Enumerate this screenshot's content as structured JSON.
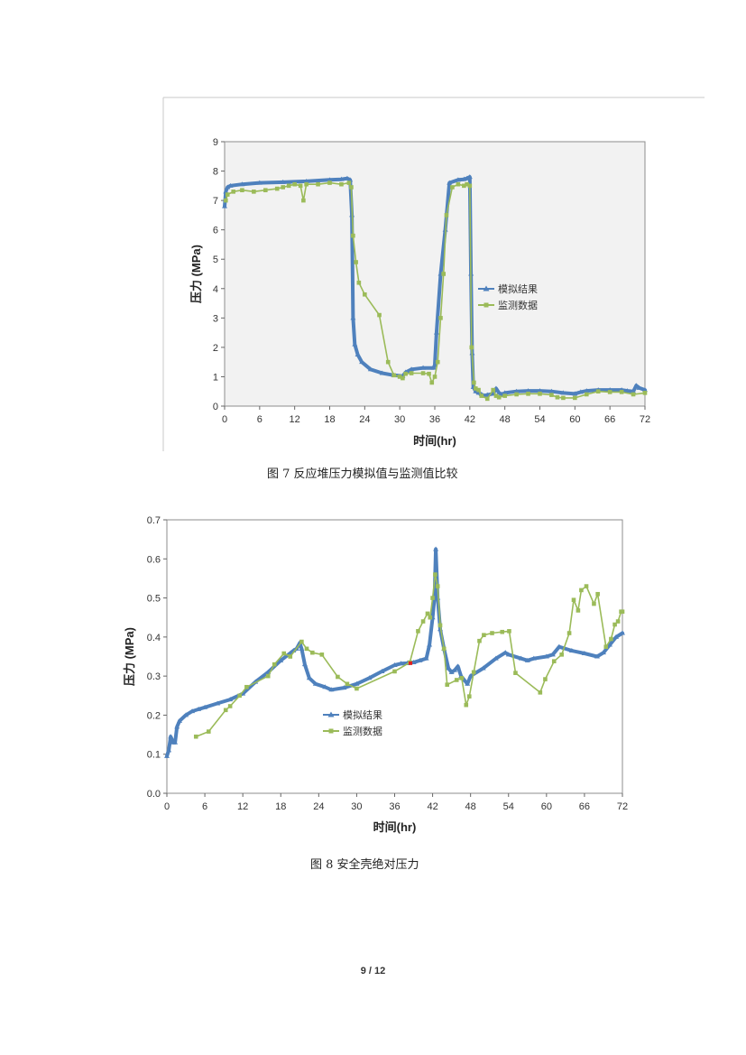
{
  "chart_data": [
    {
      "type": "line",
      "xlabel": "时间(hr)",
      "ylabel": "压力 (MPa)",
      "xlim": [
        0,
        72
      ],
      "ylim": [
        0,
        9
      ],
      "xticks": [
        0,
        6,
        12,
        18,
        24,
        30,
        36,
        42,
        48,
        54,
        60,
        66,
        72
      ],
      "yticks": [
        0,
        1,
        2,
        3,
        4,
        5,
        6,
        7,
        8,
        9
      ],
      "legend_position": "right",
      "series": [
        {
          "name": "模拟结果",
          "color": "#4f81bd",
          "marker": "triangle",
          "x": [
            0,
            0.2,
            0.5,
            1,
            3,
            6,
            10,
            14,
            18,
            20,
            21,
            21.5,
            21.8,
            22,
            22.3,
            22.8,
            23.5,
            25,
            27,
            29,
            30.5,
            31,
            32,
            34,
            35.8,
            36,
            36.3,
            37,
            37.8,
            38.5,
            40,
            41,
            41.5,
            42,
            42.2,
            42.4,
            42.6,
            43,
            43.5,
            44,
            44.5,
            45,
            46,
            46.5,
            47,
            47.5,
            48,
            50,
            52,
            54,
            56,
            58,
            60,
            61,
            62,
            64,
            66,
            68,
            69,
            70,
            70.5,
            71,
            72
          ],
          "y": [
            6.8,
            7.3,
            7.45,
            7.5,
            7.55,
            7.6,
            7.62,
            7.65,
            7.7,
            7.72,
            7.75,
            7.7,
            6.5,
            3.0,
            2.1,
            1.75,
            1.5,
            1.25,
            1.12,
            1.05,
            1.02,
            1.15,
            1.25,
            1.3,
            1.3,
            1.4,
            2.5,
            4.5,
            6.0,
            7.6,
            7.7,
            7.72,
            7.75,
            7.8,
            4.5,
            1.8,
            0.65,
            0.5,
            0.45,
            0.4,
            0.35,
            0.38,
            0.42,
            0.6,
            0.45,
            0.4,
            0.45,
            0.5,
            0.52,
            0.52,
            0.5,
            0.45,
            0.42,
            0.48,
            0.52,
            0.55,
            0.55,
            0.55,
            0.52,
            0.5,
            0.7,
            0.62,
            0.55
          ]
        },
        {
          "name": "监测数据",
          "color": "#9bbb59",
          "marker": "square",
          "x": [
            0.2,
            0.5,
            1.5,
            3,
            5,
            7,
            9,
            10,
            11,
            12,
            13,
            13.5,
            14,
            16,
            18,
            20,
            21.3,
            21.7,
            22,
            22.5,
            23,
            24,
            26.5,
            28,
            29,
            30,
            30.5,
            31,
            32,
            34,
            35,
            35.5,
            36,
            36.5,
            37,
            37.5,
            38,
            39,
            40,
            41,
            41.5,
            42,
            42.3,
            42.7,
            43,
            43.5,
            44,
            45,
            46,
            46.5,
            47,
            48,
            50,
            52,
            54,
            56,
            57,
            58,
            60,
            62,
            64,
            66,
            68,
            70,
            72
          ],
          "y": [
            7.0,
            7.2,
            7.3,
            7.35,
            7.3,
            7.35,
            7.4,
            7.45,
            7.5,
            7.55,
            7.5,
            7.0,
            7.55,
            7.55,
            7.6,
            7.55,
            7.6,
            7.45,
            5.8,
            4.9,
            4.2,
            3.8,
            3.1,
            1.5,
            1.05,
            1.0,
            0.95,
            1.1,
            1.12,
            1.12,
            1.1,
            0.8,
            1.0,
            1.5,
            3.0,
            4.5,
            6.5,
            7.45,
            7.55,
            7.5,
            7.55,
            7.5,
            2.0,
            0.8,
            0.6,
            0.55,
            0.35,
            0.25,
            0.55,
            0.35,
            0.3,
            0.35,
            0.4,
            0.42,
            0.42,
            0.38,
            0.3,
            0.28,
            0.28,
            0.4,
            0.5,
            0.48,
            0.48,
            0.4,
            0.45
          ]
        }
      ]
    },
    {
      "type": "line",
      "xlabel": "时间(hr)",
      "ylabel": "压力 (MPa)",
      "xlim": [
        0,
        72
      ],
      "ylim": [
        0,
        0.7
      ],
      "xticks": [
        0,
        6,
        12,
        18,
        24,
        30,
        36,
        42,
        48,
        54,
        60,
        66,
        72
      ],
      "yticks": [
        0,
        0.1,
        0.2,
        0.3,
        0.4,
        0.5,
        0.6,
        0.7
      ],
      "legend_position": "center",
      "series": [
        {
          "name": "模拟结果",
          "color": "#4f81bd",
          "marker": "triangle",
          "x": [
            0,
            0.3,
            0.6,
            1,
            1.3,
            1.6,
            2,
            3,
            4,
            5,
            6,
            8,
            10,
            12,
            14,
            16,
            18,
            20,
            20.5,
            21,
            21.3,
            21.8,
            22.5,
            23.5,
            25,
            26,
            28,
            30,
            32,
            34,
            36,
            37,
            38,
            39,
            40,
            41,
            41.5,
            42,
            42.3,
            42.5,
            42.8,
            43.2,
            43.8,
            44.5,
            45,
            45.5,
            46,
            46.5,
            47,
            47.5,
            48,
            50,
            52,
            53.5,
            54,
            56,
            57,
            58,
            60,
            61,
            62,
            64,
            66,
            68,
            69,
            70,
            71,
            72
          ],
          "y": [
            0.095,
            0.11,
            0.145,
            0.13,
            0.13,
            0.17,
            0.185,
            0.2,
            0.21,
            0.215,
            0.22,
            0.23,
            0.24,
            0.255,
            0.285,
            0.31,
            0.34,
            0.365,
            0.37,
            0.385,
            0.37,
            0.33,
            0.295,
            0.28,
            0.272,
            0.265,
            0.27,
            0.28,
            0.295,
            0.312,
            0.328,
            0.332,
            0.333,
            0.335,
            0.34,
            0.345,
            0.38,
            0.45,
            0.5,
            0.625,
            0.5,
            0.42,
            0.37,
            0.32,
            0.31,
            0.315,
            0.325,
            0.3,
            0.29,
            0.28,
            0.3,
            0.32,
            0.345,
            0.36,
            0.355,
            0.345,
            0.34,
            0.345,
            0.35,
            0.355,
            0.375,
            0.365,
            0.358,
            0.35,
            0.36,
            0.38,
            0.4,
            0.41
          ]
        },
        {
          "name": "监测数据",
          "color": "#9bbb59",
          "marker": "square",
          "x": [
            4.6,
            6.6,
            9.3,
            10,
            11.5,
            12.6,
            16,
            17,
            18.5,
            19.5,
            21.3,
            22.1,
            23,
            24.5,
            27,
            28.5,
            30,
            36,
            38.4,
            39.7,
            40.5,
            41.2,
            41.6,
            42,
            42.4,
            42.8,
            43.2,
            43.8,
            44.3,
            45.8,
            46.6,
            47.3,
            47.8,
            48.5,
            49.4,
            50.1,
            51.4,
            53,
            54.1,
            55.1,
            59,
            59.8,
            61.2,
            62.4,
            63.6,
            64.3,
            65,
            65.5,
            66.3,
            67.5,
            68.1,
            69.4,
            70.2,
            70.8,
            71.3,
            71.8,
            72
          ],
          "y": [
            0.145,
            0.158,
            0.213,
            0.223,
            0.25,
            0.272,
            0.3,
            0.33,
            0.358,
            0.35,
            0.388,
            0.37,
            0.36,
            0.355,
            0.298,
            0.28,
            0.268,
            0.312,
            0.335,
            0.415,
            0.44,
            0.46,
            0.45,
            0.5,
            0.56,
            0.53,
            0.43,
            0.37,
            0.278,
            0.29,
            0.295,
            0.226,
            0.248,
            0.31,
            0.39,
            0.405,
            0.41,
            0.413,
            0.415,
            0.308,
            0.258,
            0.292,
            0.338,
            0.355,
            0.41,
            0.495,
            0.468,
            0.52,
            0.53,
            0.485,
            0.51,
            0.375,
            0.395,
            0.432,
            0.44,
            0.465,
            0.465
          ]
        }
      ]
    }
  ],
  "captions": {
    "fig7": "图 7  反应堆压力模拟值与监测值比较",
    "fig8": "图 8  安全壳绝对压力"
  },
  "page_number": "9 / 12"
}
